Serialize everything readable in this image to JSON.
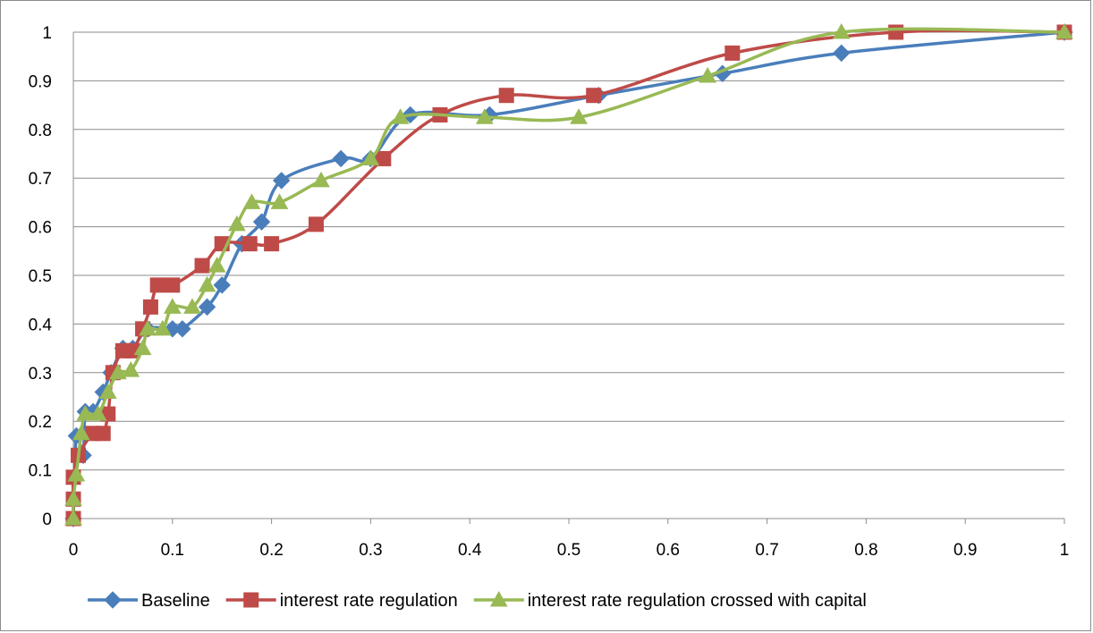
{
  "chart_data": {
    "type": "line",
    "title": "",
    "xlabel": "",
    "ylabel": "",
    "xlim": [
      0,
      1
    ],
    "ylim": [
      0,
      1
    ],
    "x_ticks": [
      "0",
      "0.1",
      "0.2",
      "0.3",
      "0.4",
      "0.5",
      "0.6",
      "0.7",
      "0.8",
      "0.9",
      "1"
    ],
    "y_ticks": [
      "0",
      "0.1",
      "0.2",
      "0.3",
      "0.4",
      "0.5",
      "0.6",
      "0.7",
      "0.8",
      "0.9",
      "1"
    ],
    "grid": "horizontal",
    "legend_position": "bottom",
    "series": [
      {
        "name": "Baseline",
        "color": "#4a7ebb",
        "marker": "diamond",
        "points": [
          [
            0,
            0
          ],
          [
            0.003,
            0.17
          ],
          [
            0.01,
            0.13
          ],
          [
            0.012,
            0.22
          ],
          [
            0.02,
            0.22
          ],
          [
            0.03,
            0.26
          ],
          [
            0.038,
            0.3
          ],
          [
            0.05,
            0.35
          ],
          [
            0.06,
            0.35
          ],
          [
            0.075,
            0.39
          ],
          [
            0.1,
            0.39
          ],
          [
            0.11,
            0.39
          ],
          [
            0.135,
            0.435
          ],
          [
            0.15,
            0.48
          ],
          [
            0.17,
            0.565
          ],
          [
            0.19,
            0.61
          ],
          [
            0.21,
            0.695
          ],
          [
            0.27,
            0.74
          ],
          [
            0.3,
            0.74
          ],
          [
            0.34,
            0.83
          ],
          [
            0.42,
            0.83
          ],
          [
            0.53,
            0.87
          ],
          [
            0.655,
            0.915
          ],
          [
            0.775,
            0.957
          ],
          [
            1,
            1
          ]
        ]
      },
      {
        "name": "interest rate regulation",
        "color": "#be4b48",
        "marker": "square",
        "points": [
          [
            0,
            0
          ],
          [
            0,
            0.04
          ],
          [
            0,
            0.085
          ],
          [
            0.005,
            0.13
          ],
          [
            0.02,
            0.175
          ],
          [
            0.03,
            0.175
          ],
          [
            0.035,
            0.215
          ],
          [
            0.04,
            0.3
          ],
          [
            0.05,
            0.345
          ],
          [
            0.06,
            0.345
          ],
          [
            0.07,
            0.39
          ],
          [
            0.078,
            0.435
          ],
          [
            0.085,
            0.48
          ],
          [
            0.1,
            0.48
          ],
          [
            0.13,
            0.52
          ],
          [
            0.15,
            0.565
          ],
          [
            0.178,
            0.565
          ],
          [
            0.2,
            0.565
          ],
          [
            0.245,
            0.605
          ],
          [
            0.313,
            0.74
          ],
          [
            0.37,
            0.83
          ],
          [
            0.437,
            0.87
          ],
          [
            0.525,
            0.87
          ],
          [
            0.665,
            0.957
          ],
          [
            0.83,
            1
          ],
          [
            1,
            1
          ]
        ]
      },
      {
        "name": "interest rate regulation crossed with capital",
        "color": "#98b954",
        "marker": "triangle",
        "points": [
          [
            0,
            0
          ],
          [
            0,
            0.04
          ],
          [
            0.003,
            0.09
          ],
          [
            0.008,
            0.175
          ],
          [
            0.012,
            0.215
          ],
          [
            0.025,
            0.215
          ],
          [
            0.035,
            0.26
          ],
          [
            0.045,
            0.3
          ],
          [
            0.058,
            0.305
          ],
          [
            0.07,
            0.35
          ],
          [
            0.075,
            0.39
          ],
          [
            0.09,
            0.39
          ],
          [
            0.1,
            0.435
          ],
          [
            0.12,
            0.435
          ],
          [
            0.135,
            0.48
          ],
          [
            0.145,
            0.52
          ],
          [
            0.165,
            0.605
          ],
          [
            0.18,
            0.65
          ],
          [
            0.208,
            0.65
          ],
          [
            0.25,
            0.695
          ],
          [
            0.3,
            0.74
          ],
          [
            0.33,
            0.825
          ],
          [
            0.415,
            0.825
          ],
          [
            0.51,
            0.825
          ],
          [
            0.64,
            0.91
          ],
          [
            0.775,
            1
          ],
          [
            1,
            1
          ]
        ]
      }
    ]
  }
}
